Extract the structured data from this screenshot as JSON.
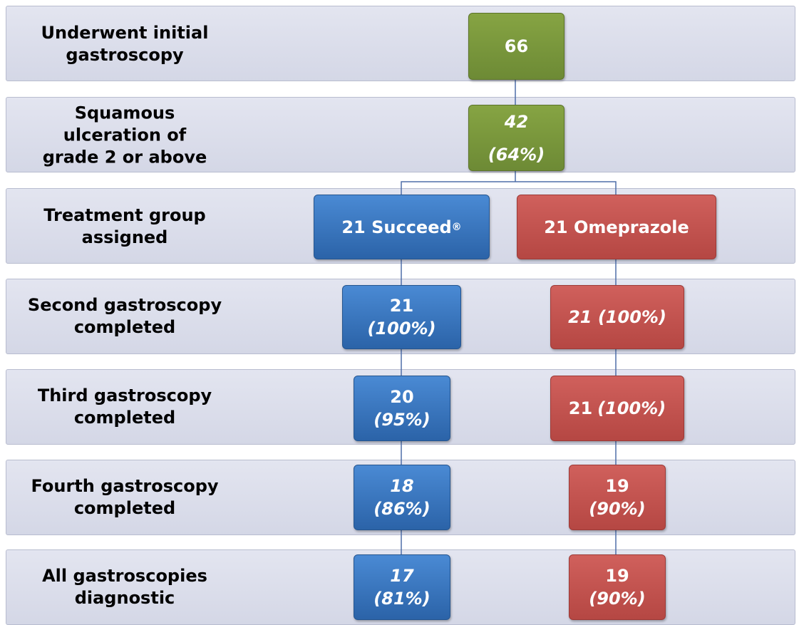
{
  "rows": [
    {
      "label": "Underwent initial gastroscopy",
      "boxes": [
        {
          "parts": [
            "66"
          ]
        }
      ]
    },
    {
      "label": "Squamous ulceration of grade 2 or above",
      "boxes": [
        {
          "parts": [
            "42",
            "(64%)"
          ]
        }
      ]
    },
    {
      "label": "Treatment group assigned",
      "boxes": [
        {
          "parts": [
            "21 Succeed",
            "®"
          ]
        },
        {
          "parts": [
            "21 Omeprazole"
          ]
        }
      ]
    },
    {
      "label": "Second gastroscopy completed",
      "boxes": [
        {
          "parts": [
            "21",
            "(100%)"
          ]
        },
        {
          "parts": [
            "21 (100%)"
          ]
        }
      ]
    },
    {
      "label": "Third gastroscopy completed",
      "boxes": [
        {
          "parts": [
            "20",
            "(95%)"
          ]
        },
        {
          "parts": [
            "21",
            "(100%)"
          ]
        }
      ]
    },
    {
      "label": "Fourth gastroscopy completed",
      "boxes": [
        {
          "parts": [
            "18",
            "(86%)"
          ]
        },
        {
          "parts": [
            "19",
            "(90%)"
          ]
        }
      ]
    },
    {
      "label": "All gastroscopies diagnostic",
      "boxes": [
        {
          "parts": [
            "17",
            "(81%)"
          ]
        },
        {
          "parts": [
            "19",
            "(90%)"
          ]
        }
      ]
    }
  ]
}
